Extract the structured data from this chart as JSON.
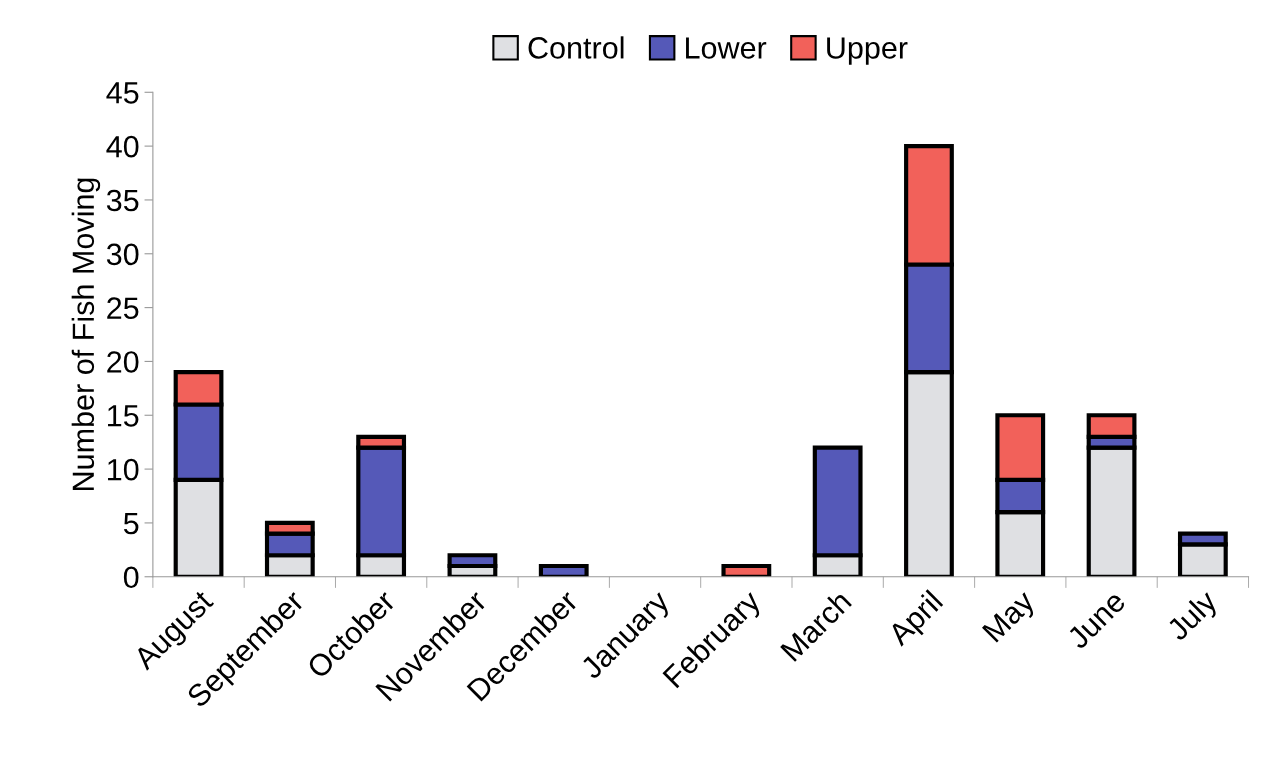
{
  "chart_data": {
    "type": "bar",
    "stacked": true,
    "ylabel": "Number of Fish Moving",
    "categories": [
      "August",
      "September",
      "October",
      "November",
      "December",
      "January",
      "February",
      "March",
      "April",
      "May",
      "June",
      "July"
    ],
    "series": [
      {
        "name": "Control",
        "color": "#dfe0e3",
        "values": [
          9,
          2,
          2,
          1,
          0,
          0,
          0,
          2,
          19,
          6,
          12,
          3
        ]
      },
      {
        "name": "Lower",
        "color": "#5559b8",
        "values": [
          7,
          2,
          10,
          1,
          1,
          0,
          0,
          10,
          10,
          3,
          1,
          1
        ]
      },
      {
        "name": "Upper",
        "color": "#f2615a",
        "values": [
          3,
          1,
          1,
          0,
          0,
          0,
          1,
          0,
          11,
          6,
          2,
          0
        ]
      }
    ],
    "ylim": [
      0,
      45
    ],
    "yticks": [
      0,
      5,
      10,
      15,
      20,
      25,
      30,
      35,
      40,
      45
    ],
    "grid": false,
    "legend": "top"
  }
}
